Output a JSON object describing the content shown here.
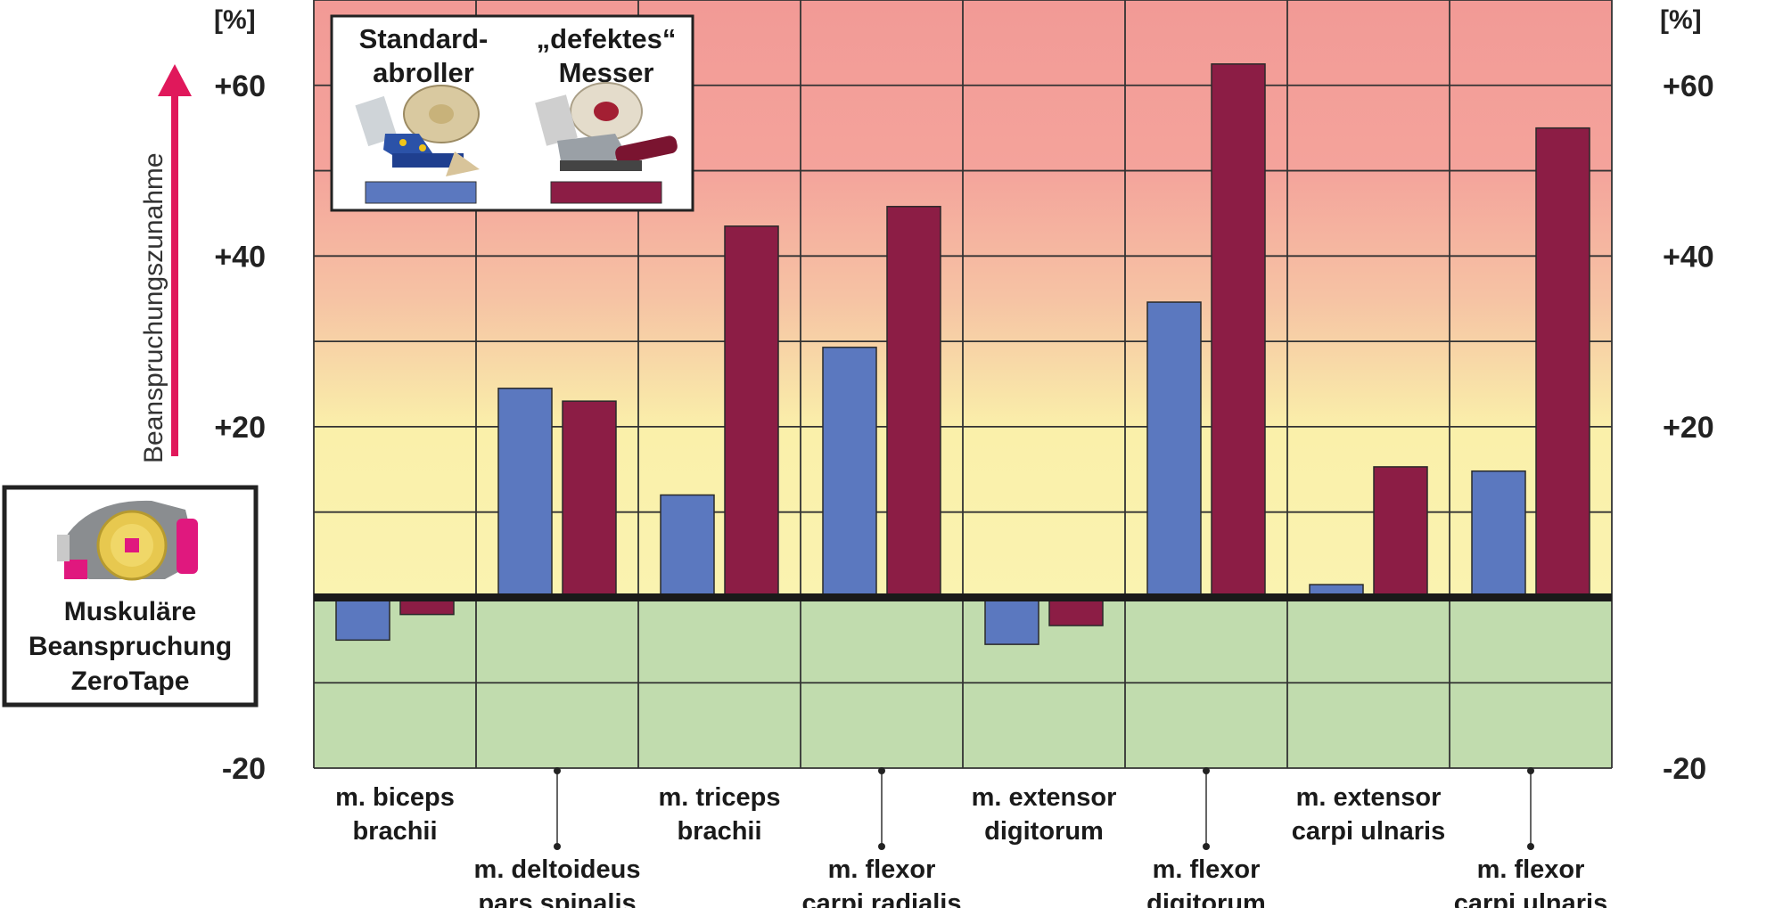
{
  "chart_data": {
    "type": "bar",
    "yunit": "[%]",
    "ylabel": "Beanspruchungszunahme",
    "ylim": [
      -20,
      70
    ],
    "yticks": [
      "+60",
      "+40",
      "+20",
      "-20"
    ],
    "ytick_values": [
      60,
      40,
      20,
      -20
    ],
    "categories": [
      [
        "m. biceps",
        "brachii"
      ],
      [
        "m. deltoideus",
        "pars spinalis"
      ],
      [
        "m. triceps",
        "brachii"
      ],
      [
        "m. flexor",
        "carpi radialis"
      ],
      [
        "m. extensor",
        "digitorum"
      ],
      [
        "m. flexor",
        "digitorum"
      ],
      [
        "m. extensor",
        "carpi ulnaris"
      ],
      [
        "m. flexor",
        "carpi ulnaris"
      ]
    ],
    "series": [
      {
        "name": "Standard-abroller",
        "values": [
          -5,
          24.5,
          12,
          29.3,
          -5.5,
          34.6,
          1.5,
          14.8
        ]
      },
      {
        "name": "„defektes“ Messer",
        "values": [
          -2,
          23,
          43.5,
          45.8,
          -3.3,
          62.5,
          15.3,
          55
        ]
      }
    ],
    "colors": {
      "series1": "#5b78bf",
      "series2": "#8c1d45",
      "zone_high": "#f29a96",
      "zone_mid": "#faf0aa",
      "zone_low": "#c1dcae",
      "arrow": "#e0185b"
    },
    "grid": true,
    "legend": {
      "placement": "top-left",
      "items": [
        {
          "line1": "Standard-",
          "line2": "abroller"
        },
        {
          "line1": "„defektes“",
          "line2": "Messer"
        }
      ]
    },
    "reference_box": [
      "Muskuläre",
      "Beanspruchung",
      "ZeroTape"
    ]
  }
}
